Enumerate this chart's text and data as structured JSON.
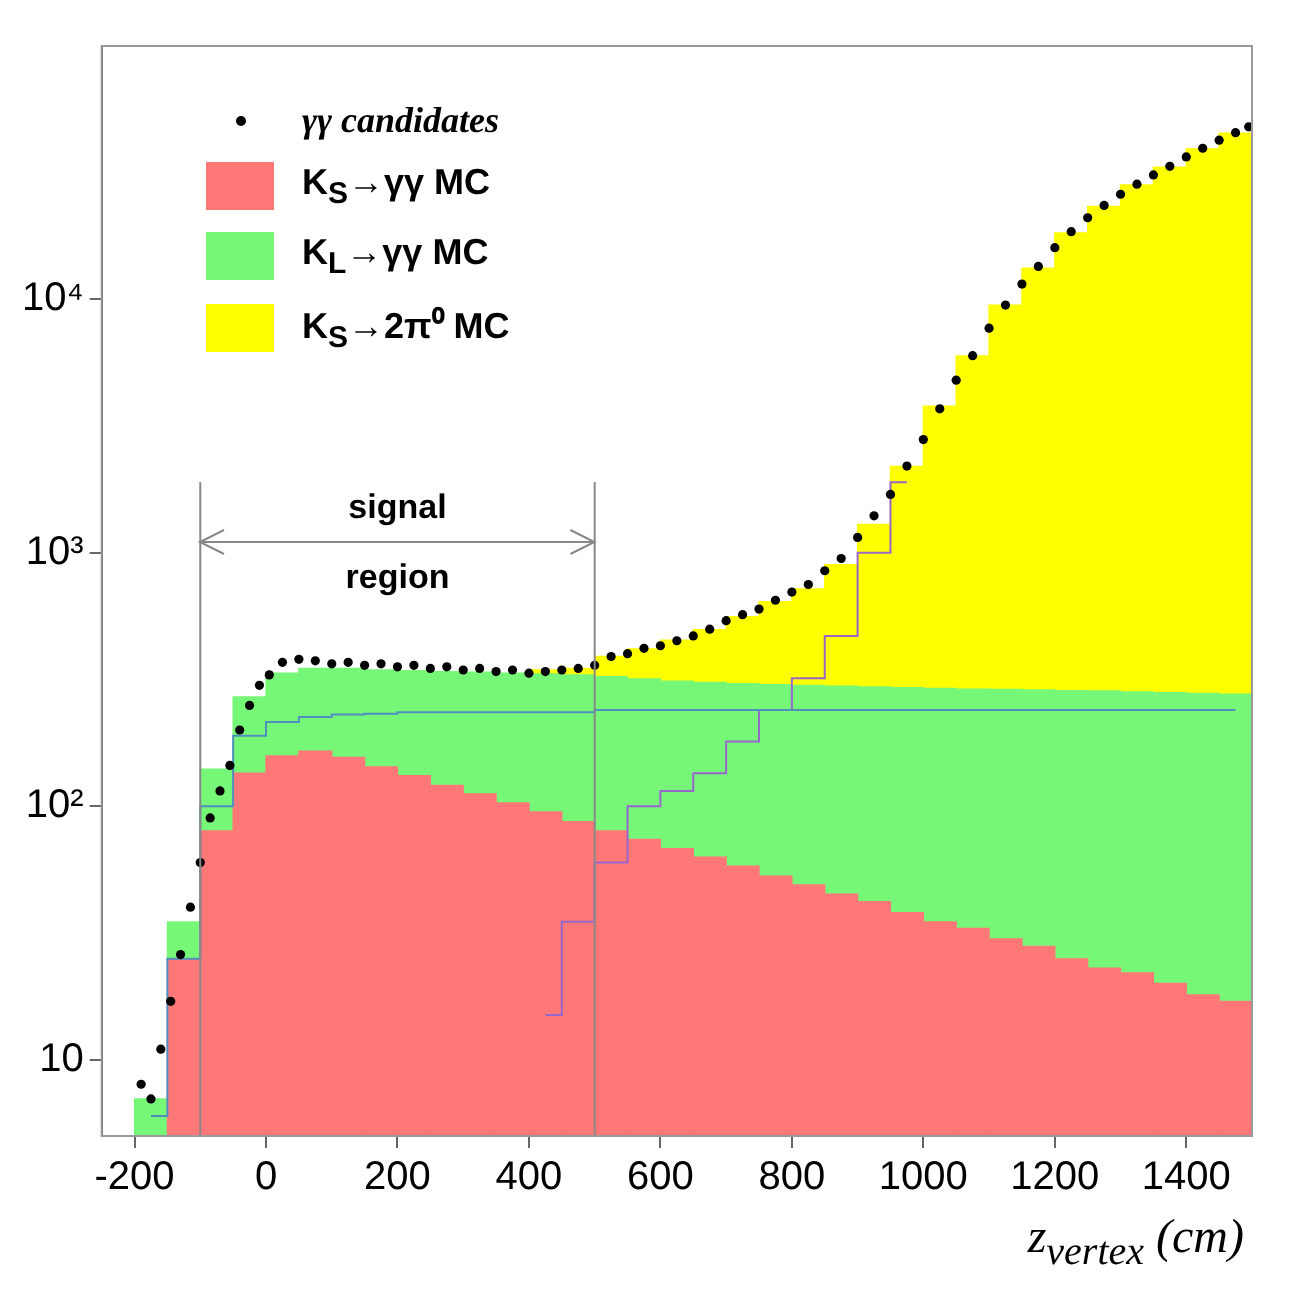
{
  "chart_data": {
    "type": "bar",
    "xlabel": "z$_{vertex}$ (cm)",
    "stacked": true,
    "log": "y",
    "grid": false,
    "legend": "top left",
    "xlim": [
      -250,
      1500
    ],
    "xticks": [
      -200,
      0,
      200,
      400,
      600,
      800,
      1000,
      1200,
      1400
    ],
    "ylim": [
      5,
      100000
    ],
    "yticks": [
      10,
      {
        "value": 100,
        "label": "10²"
      },
      {
        "value": 1000,
        "label": "10³"
      },
      {
        "value": 10000,
        "label": "10⁴"
      }
    ],
    "x": [
      -175,
      -125,
      -75,
      -25,
      25,
      75,
      125,
      175,
      225,
      275,
      325,
      375,
      425,
      475,
      525,
      575,
      625,
      675,
      725,
      775,
      825,
      875,
      925,
      975,
      1025,
      1075,
      1125,
      1175,
      1225,
      1275,
      1325,
      1375,
      1425,
      1475
    ],
    "ref_lines": [
      {
        "axis": "x",
        "value": -100
      },
      {
        "axis": "x",
        "value": 500
      }
    ],
    "annotations": [
      "signal region"
    ],
    "series": [
      {
        "name": "γγ candidates",
        "type": "scatter",
        "marker": "circle",
        "color": "#000000",
        "x": [
          -190,
          -175,
          -160,
          -145,
          -130,
          -115,
          -100,
          -85,
          -70,
          -55,
          -40,
          -25,
          -10,
          5,
          25,
          50,
          75,
          100,
          125,
          150,
          175,
          200,
          225,
          250,
          275,
          300,
          325,
          350,
          375,
          400,
          425,
          450,
          475,
          500,
          525,
          550,
          575,
          600,
          625,
          650,
          675,
          700,
          725,
          750,
          775,
          800,
          825,
          850,
          875,
          900,
          925,
          950,
          975,
          1000,
          1025,
          1050,
          1075,
          1100,
          1125,
          1150,
          1175,
          1200,
          1225,
          1250,
          1275,
          1300,
          1325,
          1350,
          1375,
          1400,
          1425,
          1450,
          1475,
          1495
        ],
        "values": [
          8,
          7,
          11,
          17,
          26,
          40,
          60,
          90,
          115,
          145,
          200,
          250,
          300,
          330,
          370,
          380,
          375,
          365,
          370,
          360,
          365,
          355,
          360,
          350,
          355,
          345,
          350,
          340,
          345,
          335,
          340,
          345,
          350,
          360,
          390,
          400,
          420,
          430,
          450,
          470,
          500,
          540,
          570,
          600,
          650,
          700,
          750,
          850,
          950,
          1150,
          1400,
          1700,
          2200,
          2800,
          3700,
          4800,
          6000,
          7700,
          9500,
          11500,
          13500,
          16000,
          18500,
          21000,
          23500,
          26000,
          28500,
          31000,
          33500,
          36500,
          39500,
          42500,
          45500,
          48000
        ]
      },
      {
        "name": "K$_{S}$→γγ MC",
        "color": "#ff7777",
        "values": [
          null,
          25,
          80,
          135,
          158,
          165,
          156,
          143,
          132,
          121,
          112,
          103,
          95,
          87,
          80,
          74,
          68,
          63,
          58,
          53,
          49,
          45,
          42,
          38,
          35,
          33,
          30,
          28,
          25,
          23,
          22,
          20,
          18,
          17
        ]
      },
      {
        "name": "K$_{L}$→γγ MC",
        "color": "#77f777",
        "values": [
          7,
          10,
          60,
          135,
          177,
          185,
          194,
          202,
          211,
          219,
          226,
          232,
          238,
          243,
          245,
          244,
          244,
          245,
          247,
          249,
          251,
          253,
          254,
          256,
          257,
          257,
          259,
          260,
          261,
          262,
          261,
          261,
          261,
          260
        ]
      },
      {
        "name": "K$_{S}$→2π⁰ MC",
        "color": "#ffff00",
        "values": [
          null,
          null,
          null,
          null,
          null,
          null,
          null,
          null,
          null,
          null,
          null,
          null,
          12,
          20,
          65,
          100,
          140,
          190,
          255,
          340,
          420,
          600,
          1000,
          1900,
          3500,
          5700,
          9200,
          13000,
          18000,
          23000,
          28000,
          33000,
          39000,
          45000
        ]
      },
      {
        "type": "step",
        "color": "#4f8fbf",
        "x": [
          -175,
          -125,
          -75,
          -25,
          25,
          75,
          125,
          175,
          225,
          275,
          325,
          375,
          425,
          475,
          525,
          575,
          625,
          675,
          725,
          775,
          825,
          875,
          925,
          975,
          1025,
          1075,
          1125,
          1175,
          1225,
          1275,
          1325,
          1375,
          1425,
          1475
        ],
        "values": [
          6,
          25,
          100,
          190,
          215,
          225,
          230,
          232,
          235,
          235,
          235,
          235,
          235,
          235,
          240,
          240,
          240,
          240,
          240,
          240,
          240,
          240,
          240,
          240,
          240,
          240,
          240,
          240,
          240,
          240,
          240,
          240,
          240,
          240
        ]
      },
      {
        "type": "step",
        "color": "#9966cc",
        "x": [
          425,
          475,
          525,
          575,
          625,
          675,
          725,
          775,
          825,
          875,
          925,
          975
        ],
        "values": [
          15,
          35,
          60,
          100,
          115,
          135,
          180,
          240,
          320,
          470,
          1000,
          1900
        ]
      }
    ]
  }
}
